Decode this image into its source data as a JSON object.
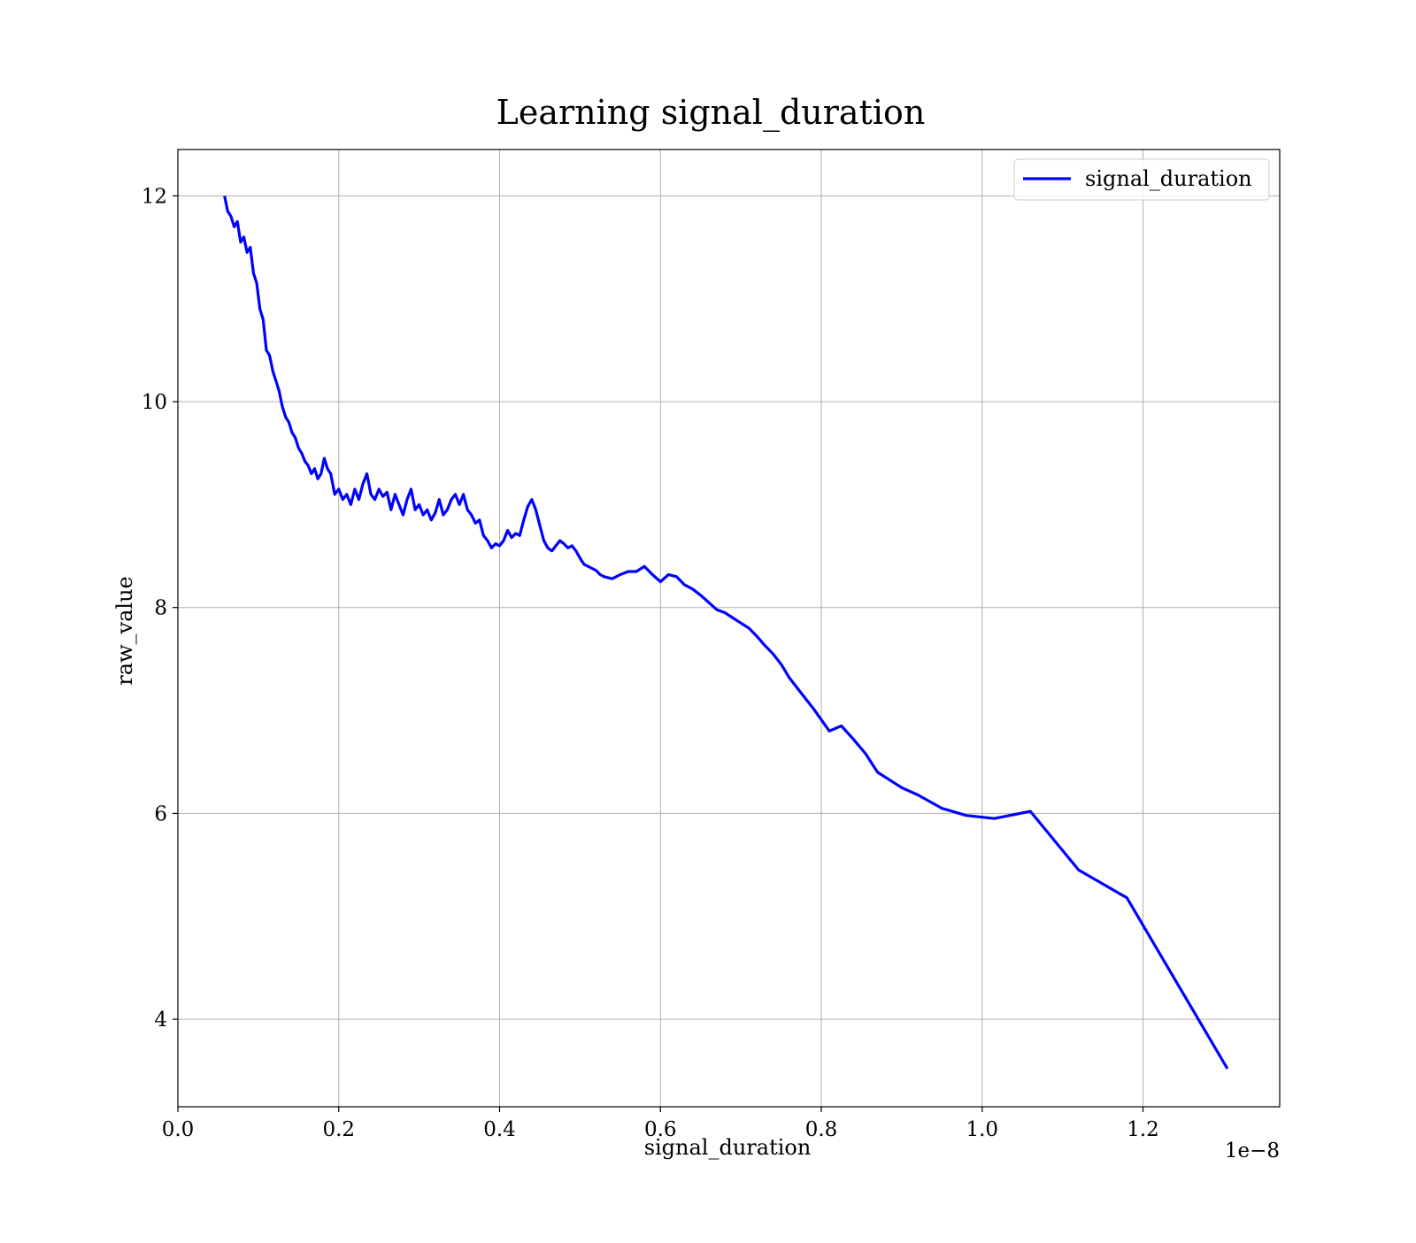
{
  "chart_data": {
    "type": "line",
    "title": "Learning signal_duration",
    "xlabel": "signal_duration",
    "ylabel": "raw_value",
    "x_offset_text": "1e−8",
    "xlim": [
      0.0,
      1.37
    ],
    "ylim": [
      3.15,
      12.45
    ],
    "xticks": [
      0.0,
      0.2,
      0.4,
      0.6,
      0.8,
      1.0,
      1.2
    ],
    "xtick_labels": [
      "0.0",
      "0.2",
      "0.4",
      "0.6",
      "0.8",
      "1.0",
      "1.2"
    ],
    "yticks": [
      4,
      6,
      8,
      10,
      12
    ],
    "ytick_labels": [
      "4",
      "6",
      "8",
      "10",
      "12"
    ],
    "grid": true,
    "legend_position": "top-right",
    "colors": {
      "series": "#0000ff"
    },
    "series": [
      {
        "name": "signal_duration",
        "x": [
          0.058,
          0.062,
          0.066,
          0.07,
          0.074,
          0.078,
          0.082,
          0.086,
          0.09,
          0.094,
          0.098,
          0.102,
          0.106,
          0.11,
          0.114,
          0.118,
          0.122,
          0.126,
          0.13,
          0.134,
          0.138,
          0.142,
          0.146,
          0.15,
          0.154,
          0.158,
          0.162,
          0.166,
          0.17,
          0.174,
          0.178,
          0.182,
          0.186,
          0.19,
          0.195,
          0.2,
          0.205,
          0.21,
          0.215,
          0.22,
          0.225,
          0.23,
          0.235,
          0.24,
          0.245,
          0.25,
          0.255,
          0.26,
          0.265,
          0.27,
          0.275,
          0.28,
          0.285,
          0.29,
          0.295,
          0.3,
          0.305,
          0.31,
          0.315,
          0.32,
          0.325,
          0.33,
          0.335,
          0.34,
          0.345,
          0.35,
          0.355,
          0.36,
          0.365,
          0.37,
          0.375,
          0.38,
          0.385,
          0.39,
          0.395,
          0.4,
          0.405,
          0.41,
          0.415,
          0.42,
          0.425,
          0.43,
          0.435,
          0.44,
          0.445,
          0.45,
          0.455,
          0.46,
          0.465,
          0.47,
          0.475,
          0.48,
          0.485,
          0.49,
          0.495,
          0.5,
          0.505,
          0.51,
          0.515,
          0.52,
          0.525,
          0.53,
          0.54,
          0.55,
          0.56,
          0.57,
          0.58,
          0.59,
          0.6,
          0.61,
          0.62,
          0.63,
          0.64,
          0.65,
          0.66,
          0.67,
          0.68,
          0.69,
          0.7,
          0.71,
          0.72,
          0.73,
          0.74,
          0.75,
          0.76,
          0.77,
          0.79,
          0.81,
          0.825,
          0.84,
          0.855,
          0.87,
          0.88,
          0.9,
          0.92,
          0.95,
          0.98,
          1.015,
          1.06,
          1.12,
          1.18,
          1.305
        ],
        "y": [
          12.0,
          11.85,
          11.8,
          11.7,
          11.75,
          11.55,
          11.6,
          11.45,
          11.5,
          11.25,
          11.15,
          10.9,
          10.8,
          10.5,
          10.45,
          10.3,
          10.2,
          10.1,
          9.95,
          9.85,
          9.8,
          9.7,
          9.65,
          9.55,
          9.5,
          9.42,
          9.38,
          9.3,
          9.35,
          9.25,
          9.3,
          9.45,
          9.35,
          9.3,
          9.1,
          9.15,
          9.05,
          9.1,
          9.0,
          9.15,
          9.05,
          9.2,
          9.3,
          9.1,
          9.05,
          9.15,
          9.08,
          9.12,
          8.95,
          9.1,
          9.0,
          8.9,
          9.05,
          9.15,
          8.95,
          9.0,
          8.9,
          8.95,
          8.85,
          8.92,
          9.05,
          8.9,
          8.95,
          9.05,
          9.1,
          9.0,
          9.1,
          8.95,
          8.9,
          8.82,
          8.85,
          8.7,
          8.65,
          8.58,
          8.62,
          8.6,
          8.65,
          8.75,
          8.68,
          8.72,
          8.7,
          8.85,
          8.98,
          9.05,
          8.95,
          8.8,
          8.65,
          8.58,
          8.55,
          8.6,
          8.65,
          8.62,
          8.58,
          8.6,
          8.55,
          8.48,
          8.42,
          8.4,
          8.38,
          8.36,
          8.32,
          8.3,
          8.28,
          8.32,
          8.35,
          8.35,
          8.4,
          8.32,
          8.25,
          8.32,
          8.3,
          8.22,
          8.18,
          8.12,
          8.05,
          7.98,
          7.95,
          7.9,
          7.85,
          7.8,
          7.72,
          7.63,
          7.55,
          7.45,
          7.32,
          7.22,
          7.02,
          6.8,
          6.85,
          6.72,
          6.58,
          6.4,
          6.35,
          6.25,
          6.18,
          6.05,
          5.98,
          5.95,
          6.02,
          5.45,
          5.18,
          3.52
        ]
      }
    ]
  }
}
